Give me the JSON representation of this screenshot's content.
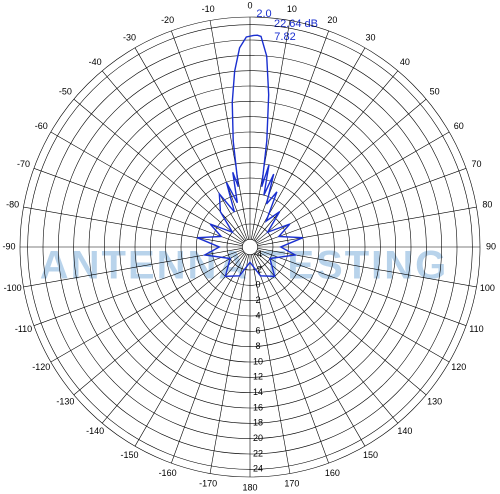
{
  "chart_data": {
    "type": "polar",
    "rlim": [
      -5,
      25
    ],
    "rticks": [
      -4,
      -2,
      0,
      2,
      4,
      6,
      8,
      10,
      12,
      14,
      16,
      18,
      20,
      22,
      24
    ],
    "thetaticks": [
      -170,
      -160,
      -150,
      -140,
      -130,
      -120,
      -110,
      -100,
      -90,
      -80,
      -70,
      -60,
      -50,
      -40,
      -30,
      -20,
      -10,
      0,
      10,
      20,
      30,
      40,
      50,
      60,
      70,
      80,
      90,
      100,
      110,
      120,
      130,
      140,
      150,
      160,
      170,
      180
    ],
    "theta": [
      -180,
      -160,
      -140,
      -120,
      -100,
      -90,
      -80,
      -70,
      -60,
      -50,
      -40,
      -30,
      -24,
      -20,
      -16,
      -13,
      -11,
      -9,
      -7,
      -5,
      -3,
      -1,
      1,
      2,
      3,
      5,
      7,
      9,
      11,
      13,
      15,
      18,
      21,
      26,
      32,
      40,
      50,
      60,
      70,
      80,
      90,
      100,
      120,
      140,
      160,
      180
    ],
    "values": [
      -3,
      -1,
      0,
      -2,
      1,
      -1,
      2,
      -1,
      1,
      -2,
      1,
      3,
      0,
      4,
      1,
      5,
      3,
      9,
      14,
      18,
      21,
      22.4,
      22.6,
      22.64,
      22.5,
      20,
      15,
      9,
      3,
      6,
      2,
      5,
      1,
      3,
      -1,
      1,
      -2,
      1,
      -1,
      2,
      -1,
      1,
      -2,
      0,
      -1,
      -3
    ],
    "color": "#1a2fd0",
    "annotations": [
      "2.0",
      "22.64 dB",
      "7.82"
    ],
    "watermark": "ANTENNA TESTING"
  }
}
